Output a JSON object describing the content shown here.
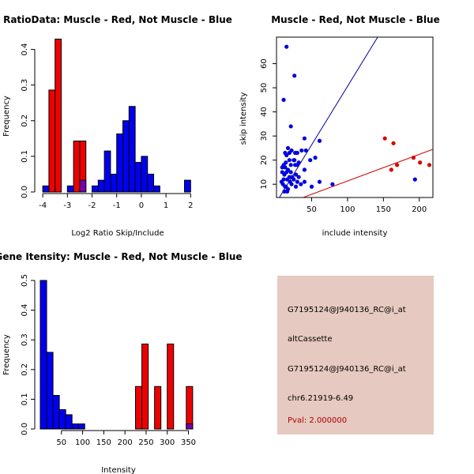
{
  "chart_data": [
    {
      "id": "ratio",
      "type": "histogram",
      "title": "RatioData: Muscle - Red, Not Muscle - Blue",
      "xlabel": "Log2 Ratio Skip/Include",
      "ylabel": "Frequency",
      "xlim": [
        -4.1,
        2.15
      ],
      "ylim": [
        0,
        0.45
      ],
      "xticks": [
        "-4",
        "-3",
        "-2",
        "-1",
        "0",
        "1",
        "2"
      ],
      "xtick_values": [
        -4,
        -3,
        -2,
        -1,
        0,
        1,
        2
      ],
      "yticks": [
        "0.0",
        "0.1",
        "0.2",
        "0.3",
        "0.4"
      ],
      "ytick_values": [
        0,
        0.1,
        0.2,
        0.3,
        0.4
      ],
      "bin_width": 0.25,
      "series": [
        {
          "name": "Not Muscle",
          "color": "#0000ee",
          "bins": [
            {
              "x0": -4.0,
              "v": 0.017
            },
            {
              "x0": -3.0,
              "v": 0.017
            },
            {
              "x0": -2.5,
              "v": 0.033
            },
            {
              "x0": -2.0,
              "v": 0.017
            },
            {
              "x0": -1.75,
              "v": 0.033
            },
            {
              "x0": -1.5,
              "v": 0.115
            },
            {
              "x0": -1.25,
              "v": 0.05
            },
            {
              "x0": -1.0,
              "v": 0.163
            },
            {
              "x0": -0.75,
              "v": 0.2
            },
            {
              "x0": -0.5,
              "v": 0.24
            },
            {
              "x0": -0.25,
              "v": 0.083
            },
            {
              "x0": 0.0,
              "v": 0.1
            },
            {
              "x0": 0.25,
              "v": 0.05
            },
            {
              "x0": 0.5,
              "v": 0.017
            },
            {
              "x0": 1.75,
              "v": 0.033
            }
          ]
        },
        {
          "name": "Muscle",
          "color": "#ee0000",
          "bins": [
            {
              "x0": -3.75,
              "v": 0.286
            },
            {
              "x0": -3.5,
              "v": 0.429
            },
            {
              "x0": -2.75,
              "v": 0.143
            },
            {
              "x0": -2.5,
              "v": 0.143
            }
          ]
        }
      ]
    },
    {
      "id": "scatter",
      "type": "scatter",
      "title": "Muscle - Red, Not Muscle - Blue",
      "xlabel": "include intensity",
      "ylabel": "skip intensity",
      "xlim": [
        1,
        219
      ],
      "ylim": [
        4.5,
        71
      ],
      "xticks": [
        "50",
        "100",
        "150",
        "200"
      ],
      "xtick_values": [
        50,
        100,
        150,
        200
      ],
      "yticks": [
        "10",
        "20",
        "30",
        "40",
        "50",
        "60"
      ],
      "ytick_values": [
        10,
        20,
        30,
        40,
        50,
        60
      ],
      "lines": [
        {
          "name": "Not Muscle fit",
          "color": "#000099",
          "x": [
            5,
            142
          ],
          "y": [
            4.5,
            71
          ]
        },
        {
          "name": "Muscle fit",
          "color": "#cc0000",
          "x": [
            38,
            219
          ],
          "y": [
            4.5,
            24.5
          ]
        }
      ],
      "series": [
        {
          "name": "Not Muscle",
          "color": "#0000dd",
          "points": [
            [
              15,
              67
            ],
            [
              26,
              55
            ],
            [
              11,
              45
            ],
            [
              21,
              34
            ],
            [
              40,
              29
            ],
            [
              30,
              23
            ],
            [
              36,
              24
            ],
            [
              42,
              24
            ],
            [
              61,
              28
            ],
            [
              13,
              23
            ],
            [
              15,
              22
            ],
            [
              19,
              23
            ],
            [
              22,
              24
            ],
            [
              27,
              23
            ],
            [
              17,
              25
            ],
            [
              25,
              20
            ],
            [
              19,
              20
            ],
            [
              27,
              18
            ],
            [
              11,
              18
            ],
            [
              14,
              19
            ],
            [
              21,
              18
            ],
            [
              26,
              20
            ],
            [
              30,
              18
            ],
            [
              32,
              19
            ],
            [
              40,
              16
            ],
            [
              48,
              20
            ],
            [
              55,
              21
            ],
            [
              9,
              17
            ],
            [
              13,
              17
            ],
            [
              17,
              16
            ],
            [
              21,
              15
            ],
            [
              9,
              15
            ],
            [
              12,
              14
            ],
            [
              15,
              15
            ],
            [
              19,
              13
            ],
            [
              23,
              13
            ],
            [
              28,
              14
            ],
            [
              32,
              13
            ],
            [
              11,
              12
            ],
            [
              16,
              12
            ],
            [
              20,
              11
            ],
            [
              25,
              12
            ],
            [
              30,
              11
            ],
            [
              35,
              10
            ],
            [
              8,
              11
            ],
            [
              10,
              10
            ],
            [
              13,
              9
            ],
            [
              17,
              8
            ],
            [
              22,
              10
            ],
            [
              28,
              9
            ],
            [
              40,
              11
            ],
            [
              50,
              9
            ],
            [
              61,
              11
            ],
            [
              79,
              10
            ],
            [
              12,
              7
            ],
            [
              16,
              7
            ],
            [
              14,
              9
            ],
            [
              194,
              12
            ]
          ]
        },
        {
          "name": "Muscle",
          "color": "#dd0000",
          "points": [
            [
              152,
              29
            ],
            [
              164,
              27
            ],
            [
              169,
              18
            ],
            [
              161,
              16
            ],
            [
              192,
              21
            ],
            [
              201,
              19
            ],
            [
              214,
              18
            ]
          ]
        }
      ]
    },
    {
      "id": "intensity",
      "type": "histogram",
      "title": "Gene Itensity: Muscle - Red, Not Muscle - Blue",
      "xlabel": "Intensity",
      "ylabel": "Frequency",
      "xlim": [
        0,
        364
      ],
      "ylim": [
        0,
        0.5
      ],
      "xticks": [
        "50",
        "100",
        "150",
        "200",
        "250",
        "300",
        "350"
      ],
      "xtick_values": [
        50,
        100,
        150,
        200,
        250,
        300,
        350
      ],
      "yticks": [
        "0.0",
        "0.1",
        "0.2",
        "0.3",
        "0.4",
        "0.5"
      ],
      "ytick_values": [
        0,
        0.1,
        0.2,
        0.3,
        0.4,
        0.5
      ],
      "bin_width": 15,
      "series": [
        {
          "name": "Not Muscle",
          "color": "#0000ee",
          "bins": [
            {
              "x0": 0,
              "v": 0.5
            },
            {
              "x0": 15,
              "v": 0.258
            },
            {
              "x0": 30,
              "v": 0.113
            },
            {
              "x0": 45,
              "v": 0.065
            },
            {
              "x0": 60,
              "v": 0.048
            },
            {
              "x0": 75,
              "v": 0.017
            },
            {
              "x0": 90,
              "v": 0.017
            },
            {
              "x0": 345,
              "v": 0.017
            }
          ]
        },
        {
          "name": "Muscle",
          "color": "#ee0000",
          "bins": [
            {
              "x0": 225,
              "v": 0.143
            },
            {
              "x0": 240,
              "v": 0.286
            },
            {
              "x0": 270,
              "v": 0.143
            },
            {
              "x0": 300,
              "v": 0.286
            },
            {
              "x0": 345,
              "v": 0.143
            }
          ]
        }
      ]
    }
  ],
  "info_panel": {
    "probe_id": "G7195124@J940136_RC@i_at",
    "event_type": "altCassette",
    "probe_id_2": "G7195124@J940136_RC@i_at",
    "location": "chr6.21919-6.49",
    "pval": "Pval: 2.000000"
  }
}
